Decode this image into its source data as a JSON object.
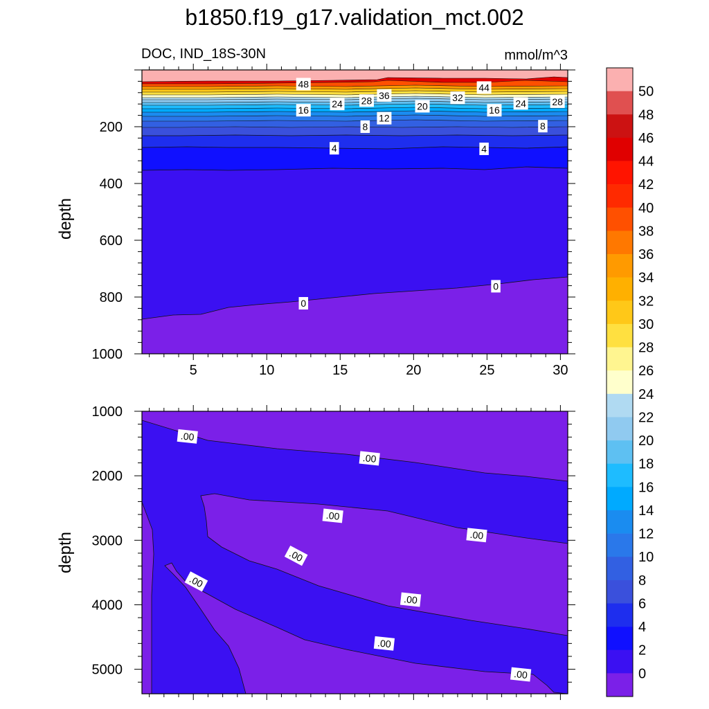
{
  "figure": {
    "title": "b1850.f19_g17.validation_mct.002",
    "subtitle_left": "DOC, IND_18S-30N",
    "units": "mmol/m^3"
  },
  "chart_data": [
    {
      "type": "contour",
      "panel": "upper",
      "ylabel": "depth",
      "xlabel": "",
      "x_ticks": [
        5,
        10,
        15,
        20,
        25,
        30
      ],
      "y_ticks": [
        200,
        400,
        600,
        800,
        1000
      ],
      "xlim": [
        1.5,
        30.5
      ],
      "ylim": [
        1000,
        0
      ],
      "contour_labels": [
        {
          "text": "48",
          "x": 12.5,
          "y": 50
        },
        {
          "text": "36",
          "x": 18.0,
          "y": 90
        },
        {
          "text": "44",
          "x": 24.8,
          "y": 62
        },
        {
          "text": "24",
          "x": 14.8,
          "y": 120
        },
        {
          "text": "28",
          "x": 16.8,
          "y": 108
        },
        {
          "text": "32",
          "x": 23.0,
          "y": 98
        },
        {
          "text": "20",
          "x": 20.6,
          "y": 128
        },
        {
          "text": "24",
          "x": 27.3,
          "y": 118
        },
        {
          "text": "28",
          "x": 29.8,
          "y": 112
        },
        {
          "text": "16",
          "x": 12.5,
          "y": 142
        },
        {
          "text": "16",
          "x": 25.5,
          "y": 142
        },
        {
          "text": "12",
          "x": 18.0,
          "y": 170
        },
        {
          "text": "8",
          "x": 16.7,
          "y": 200
        },
        {
          "text": "8",
          "x": 28.8,
          "y": 198
        },
        {
          "text": "4",
          "x": 14.6,
          "y": 276
        },
        {
          "text": "4",
          "x": 24.8,
          "y": 278
        },
        {
          "text": "0",
          "x": 12.5,
          "y": 822
        },
        {
          "text": "0",
          "x": 25.6,
          "y": 762
        }
      ]
    },
    {
      "type": "contour",
      "panel": "lower",
      "ylabel": "depth",
      "xlabel": "",
      "y_ticks": [
        1000,
        2000,
        3000,
        4000,
        5000
      ],
      "xlim": [
        1.5,
        30.5
      ],
      "ylim": [
        5380,
        1000
      ],
      "contour_labels": [
        {
          "text": ".00",
          "x": 4.6,
          "y": 1390
        },
        {
          "text": ".00",
          "x": 17.0,
          "y": 1730
        },
        {
          "text": ".00",
          "x": 14.5,
          "y": 2620
        },
        {
          "text": ".00",
          "x": 24.3,
          "y": 2920
        },
        {
          "text": ".00",
          "x": 12.0,
          "y": 3240
        },
        {
          "text": ".00",
          "x": 5.2,
          "y": 3640
        },
        {
          "text": ".00",
          "x": 19.8,
          "y": 3920
        },
        {
          "text": ".00",
          "x": 18.0,
          "y": 4600
        },
        {
          "text": ".00",
          "x": 27.3,
          "y": 5080
        }
      ]
    }
  ],
  "colorbar": {
    "labels": [
      "50",
      "48",
      "46",
      "44",
      "42",
      "40",
      "38",
      "36",
      "34",
      "32",
      "30",
      "28",
      "26",
      "24",
      "22",
      "20",
      "18",
      "16",
      "14",
      "12",
      "10",
      "8",
      "6",
      "4",
      "2",
      "0"
    ],
    "colors": [
      "#fbb0b0",
      "#e05050",
      "#cc1212",
      "#e00000",
      "#ff1400",
      "#ff2a00",
      "#ff5000",
      "#ff7800",
      "#ff9a00",
      "#ffb000",
      "#ffc818",
      "#ffe040",
      "#fff590",
      "#ffffcc",
      "#b0daf2",
      "#90caf0",
      "#5ec0f2",
      "#1ebcff",
      "#00aaff",
      "#1a8cf0",
      "#2a78ea",
      "#3260e2",
      "#3a50dc",
      "#1e2eee",
      "#1010ff",
      "#3b10f2",
      "#7b20e8"
    ]
  },
  "colors": {
    "deep_purple": "#7b20e8",
    "indigo": "#3b10f2"
  }
}
